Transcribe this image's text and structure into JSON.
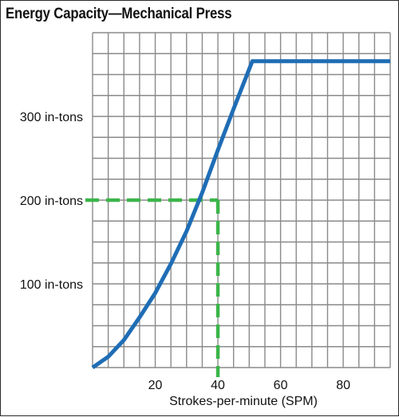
{
  "chart_data": {
    "type": "line",
    "title": "Energy Capacity—Mechanical Press",
    "xlabel": "Strokes-per-minute (SPM)",
    "ylabel": "",
    "xlim": [
      0,
      95
    ],
    "ylim": [
      0,
      400
    ],
    "x_ticks": [
      20,
      40,
      60,
      80
    ],
    "x_tick_labels": [
      "20",
      "40",
      "60",
      "80"
    ],
    "y_ticks": [
      100,
      200,
      300
    ],
    "y_tick_labels": [
      "100 in-tons",
      "200 in-tons",
      "300 in-tons"
    ],
    "grid": true,
    "series": [
      {
        "x": [
          0,
          5,
          10,
          15,
          20,
          25,
          30,
          35,
          40,
          45,
          51,
          60,
          70,
          80,
          95
        ],
        "y": [
          0,
          13,
          33,
          60,
          89,
          124,
          163,
          209,
          260,
          309,
          366,
          366,
          366,
          366,
          366
        ],
        "color": "#1f6db5"
      }
    ],
    "reference_lines": {
      "x": 40,
      "y": 200,
      "color": "#3cb54a",
      "style": "dashed"
    }
  }
}
